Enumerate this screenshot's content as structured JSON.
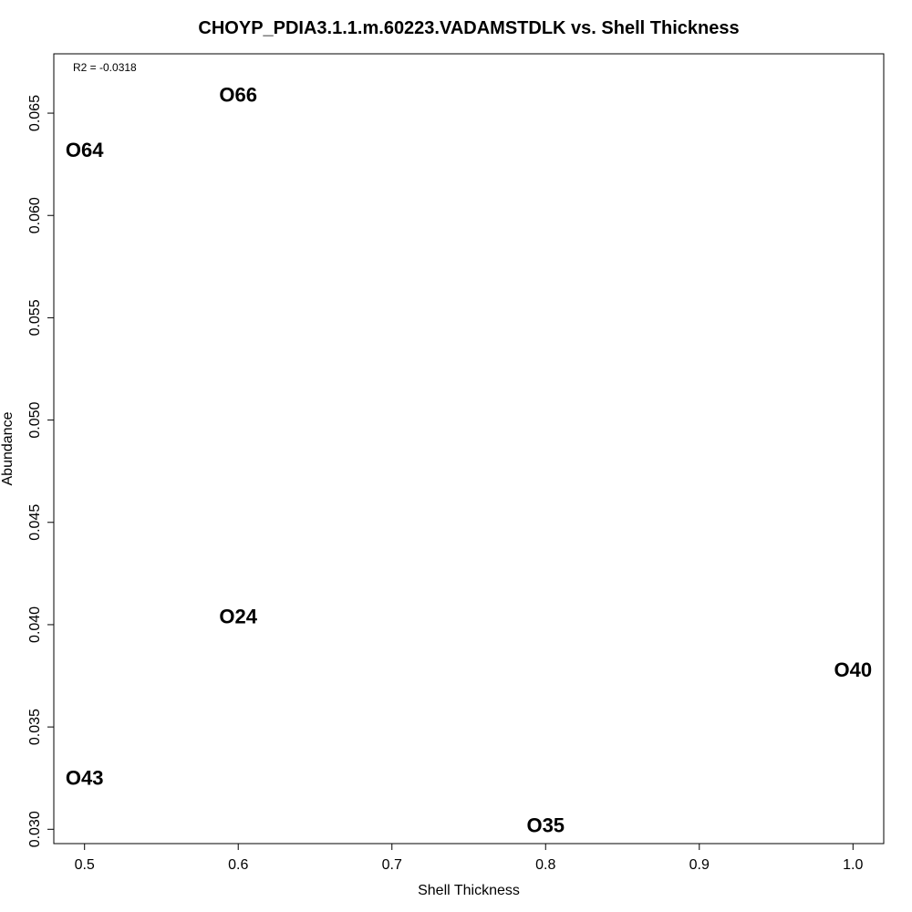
{
  "chart_data": {
    "type": "scatter",
    "title": "CHOYP_PDIA3.1.1.m.60223.VADAMSTDLK vs. Shell Thickness",
    "xlabel": "Shell Thickness",
    "ylabel": "Abundance",
    "annotation": "R2 = -0.0318",
    "xlim": [
      0.48,
      1.02
    ],
    "ylim": [
      0.0293,
      0.0679
    ],
    "xticks": [
      "0.5",
      "0.6",
      "0.7",
      "0.8",
      "0.9",
      "1.0"
    ],
    "yticks": [
      "0.030",
      "0.035",
      "0.040",
      "0.045",
      "0.050",
      "0.055",
      "0.060",
      "0.065"
    ],
    "grid": false,
    "marker": "text-label",
    "points": [
      {
        "label": "O66",
        "x": 0.6,
        "y": 0.0659
      },
      {
        "label": "O64",
        "x": 0.5,
        "y": 0.0632
      },
      {
        "label": "O24",
        "x": 0.6,
        "y": 0.0404
      },
      {
        "label": "O40",
        "x": 1.0,
        "y": 0.0378
      },
      {
        "label": "O43",
        "x": 0.5,
        "y": 0.0325
      },
      {
        "label": "O35",
        "x": 0.8,
        "y": 0.0302
      }
    ]
  }
}
